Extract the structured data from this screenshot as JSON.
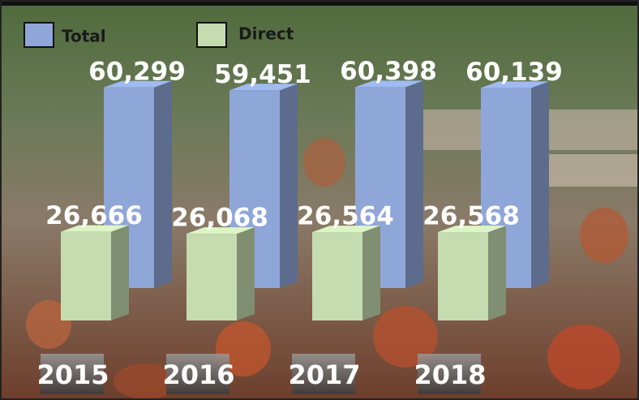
{
  "chart_data": {
    "type": "bar",
    "categories": [
      "2015",
      "2016",
      "2017",
      "2018"
    ],
    "series": [
      {
        "name": "Total",
        "color": "#8fa6d8",
        "values": [
          60299,
          59451,
          60398,
          60139
        ],
        "value_labels": [
          "60,299",
          "59,451",
          "60,398",
          "60,139"
        ]
      },
      {
        "name": "Direct",
        "color": "#c5dbb0",
        "values": [
          26666,
          26068,
          26564,
          26568
        ],
        "value_labels": [
          "26,666",
          "26,068",
          "26,564",
          "26,568"
        ]
      }
    ]
  }
}
